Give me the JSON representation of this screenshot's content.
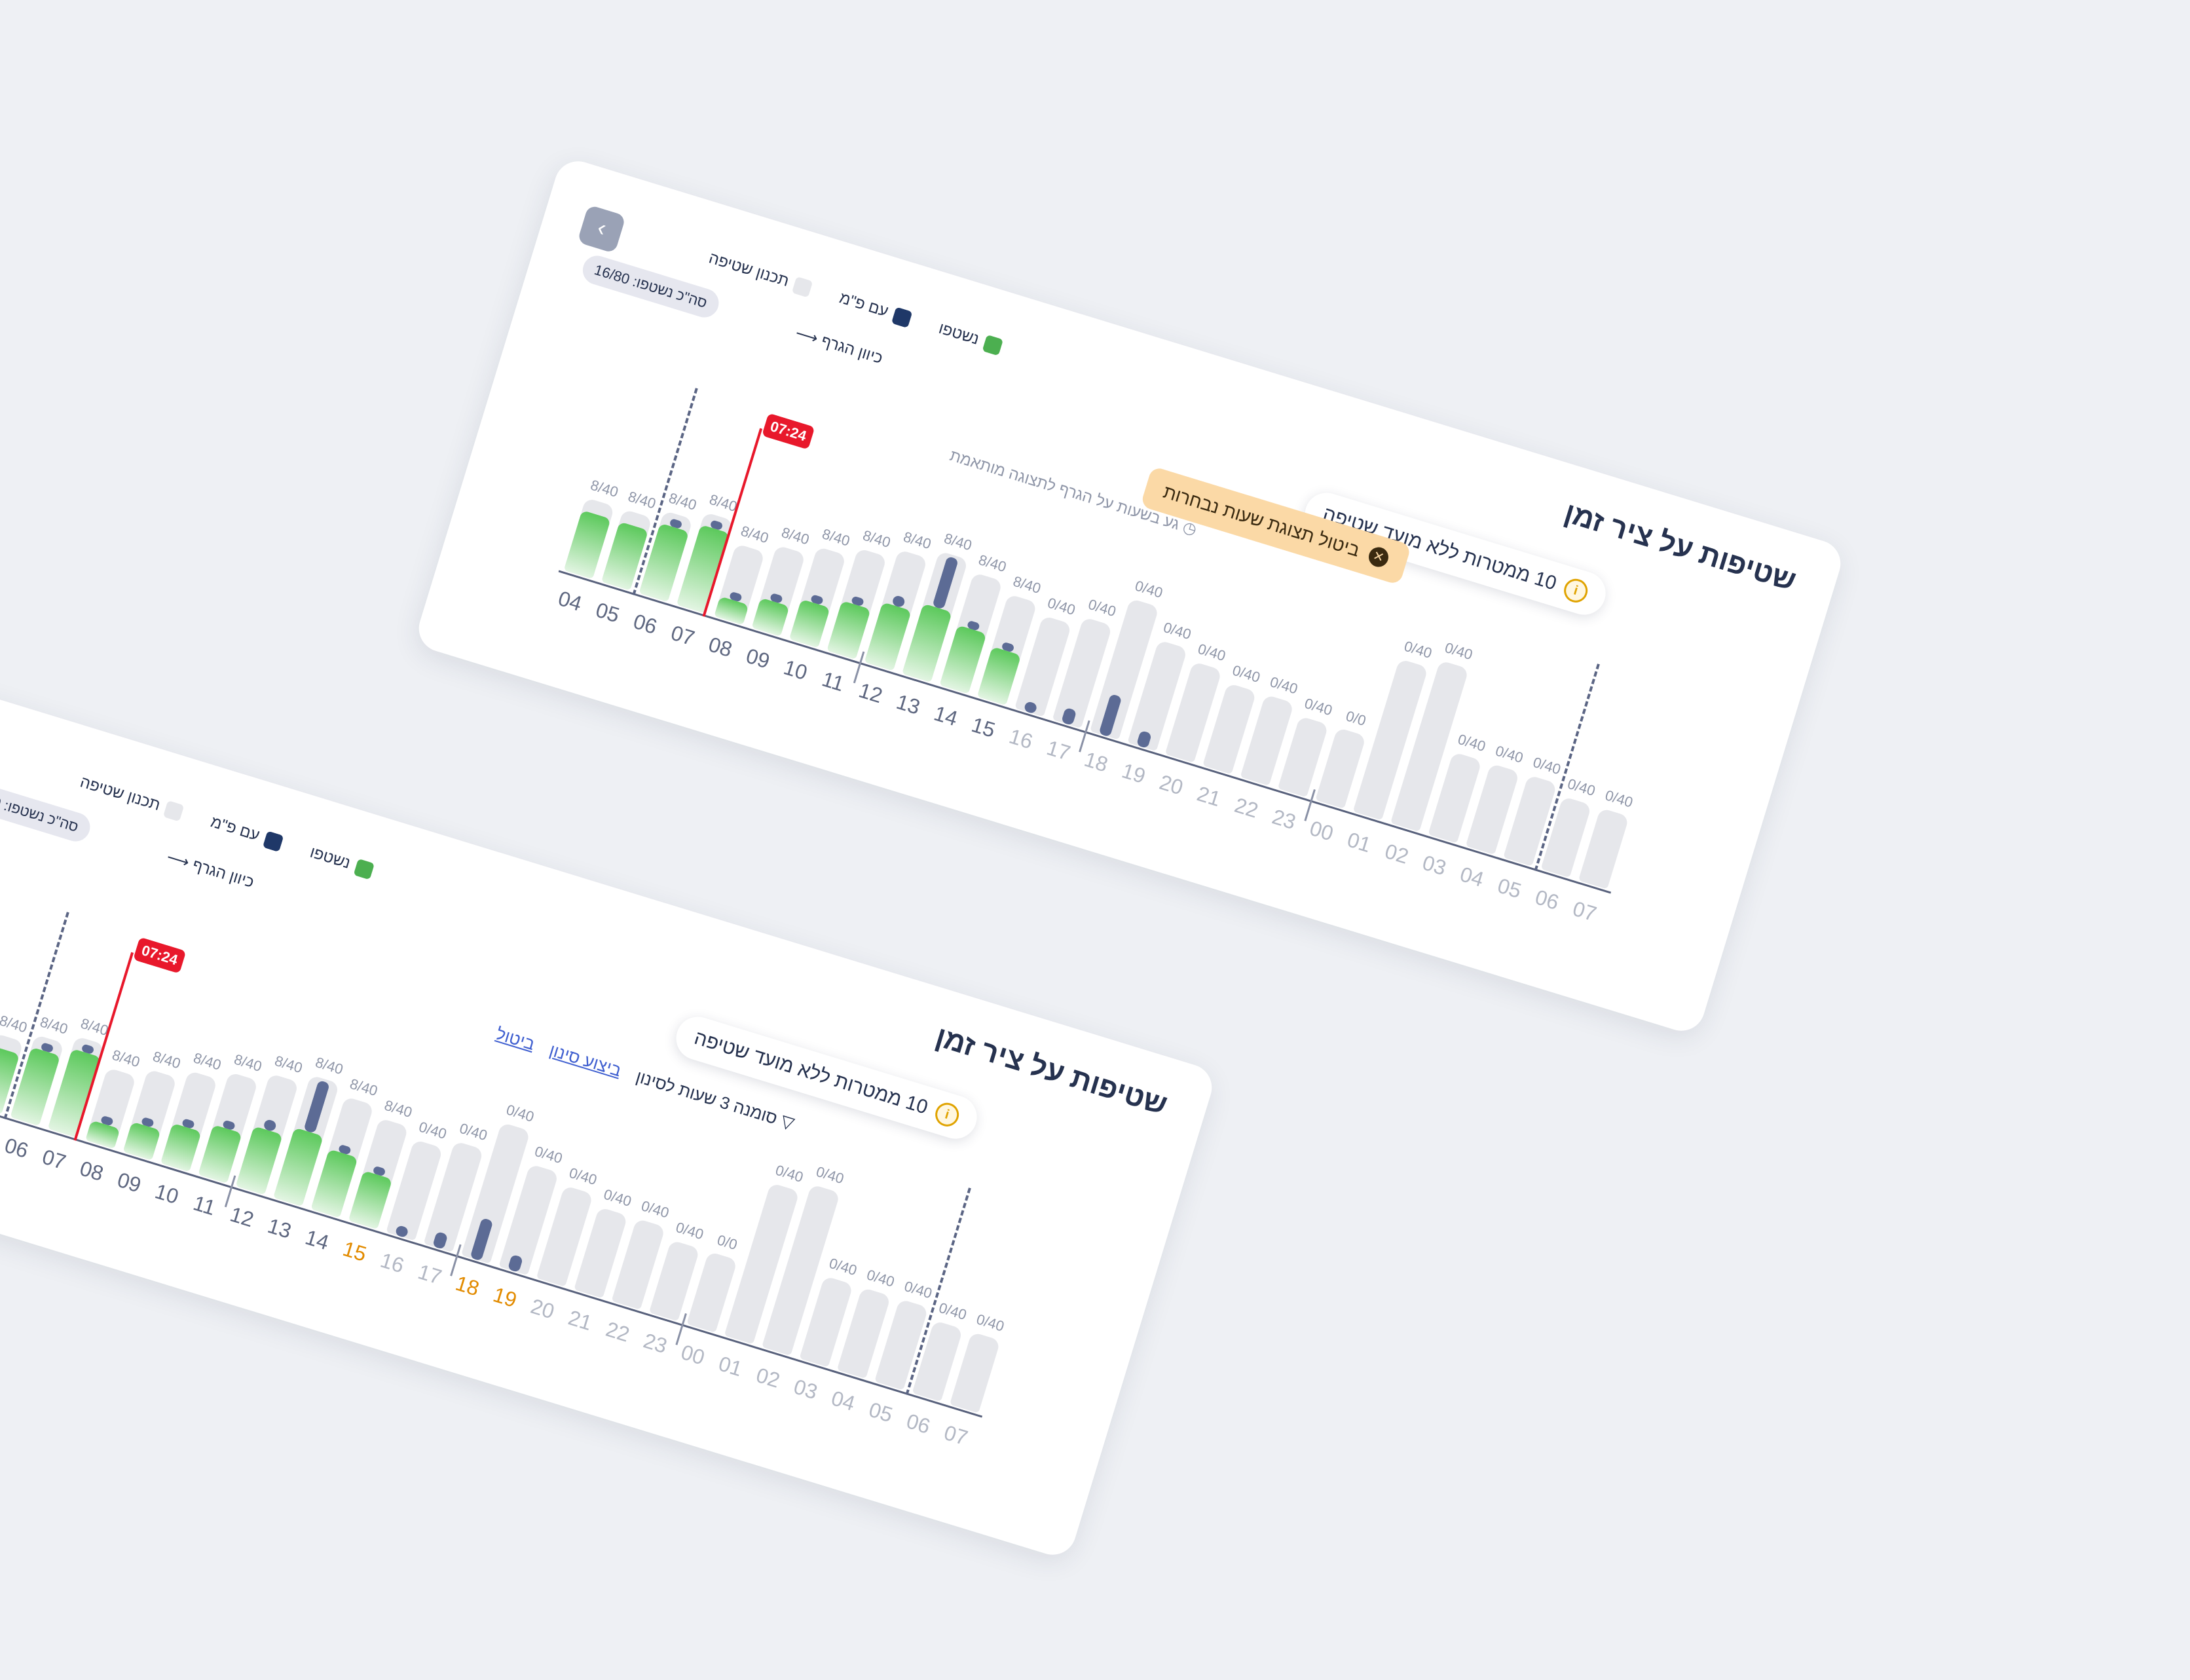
{
  "title": "שטיפות על ציר זמן",
  "pill_text": "10 ממטרות ללא מועד שטיפה",
  "legend": {
    "washed": "נשטפו",
    "with_pim": "עם פ\"מ",
    "planned": "תכנון שטיפה"
  },
  "direction_label": "כיוון הגרף",
  "shifts_badge": "סה\"כ נשטפו: 16/80",
  "now_time": "07:24",
  "hint_text": "גע בשעות על הגרף לתצוגה מותאמת",
  "toast_text": "ביטול תצוגת שעות נבחרות",
  "filter_text": "סומנה 3 שעות לסינון",
  "filter_action": "ביצוע סינון",
  "filter_cancel": "ביטול",
  "colors": {
    "washed": "#4caf50",
    "with_pim": "#1f3868",
    "planned": "#e6e7eb",
    "now": "#e8182b"
  },
  "chart_data": {
    "type": "bar",
    "categories": [
      "04",
      "05",
      "06",
      "07",
      "08",
      "09",
      "10",
      "11",
      "12",
      "13",
      "14",
      "15",
      "16",
      "17",
      "18",
      "19",
      "20",
      "21",
      "22",
      "23",
      "00",
      "01",
      "02",
      "03",
      "04",
      "05",
      "06",
      "07"
    ],
    "capacity_labels": [
      "8/40",
      "8/40",
      "8/40",
      "8/40",
      "8/40",
      "8/40",
      "8/40",
      "8/40",
      "8/40",
      "8/40",
      "8/40",
      "8/40",
      "0/40",
      "0/40",
      "0/40",
      "0/40",
      "0/40",
      "0/40",
      "0/40",
      "0/40",
      "0/0",
      "0/40",
      "0/40",
      "0/40",
      "0/40",
      "0/40",
      "0/40",
      "0/40"
    ],
    "series": [
      {
        "name": "נשטפו",
        "values": [
          0.3,
          0.3,
          0.35,
          0.4,
          0.1,
          0.15,
          0.2,
          0.25,
          0.3,
          0.35,
          0.3,
          0.25,
          0,
          0,
          0,
          0,
          0,
          0,
          0,
          0,
          0,
          0,
          0,
          0,
          0,
          0,
          0,
          0
        ]
      },
      {
        "name": "עם פ\"מ",
        "values": [
          0,
          0,
          0.05,
          0.05,
          0.05,
          0.05,
          0.05,
          0.05,
          0.1,
          0.5,
          0.05,
          0.05,
          0.1,
          0.15,
          0.4,
          0.15,
          0,
          0,
          0,
          0,
          0,
          0,
          0,
          0,
          0,
          0,
          0,
          0
        ]
      },
      {
        "name": "תכנון שטיפה",
        "values": [
          0.3,
          0.3,
          0.35,
          0.4,
          0.3,
          0.35,
          0.4,
          0.45,
          0.5,
          0.55,
          0.5,
          0.45,
          0.4,
          0.45,
          0.6,
          0.45,
          0.4,
          0.35,
          0.35,
          0.3,
          0.3,
          0.7,
          0.75,
          0.35,
          0.35,
          0.35,
          0.3,
          0.3
        ]
      }
    ],
    "now_index": 4
  }
}
